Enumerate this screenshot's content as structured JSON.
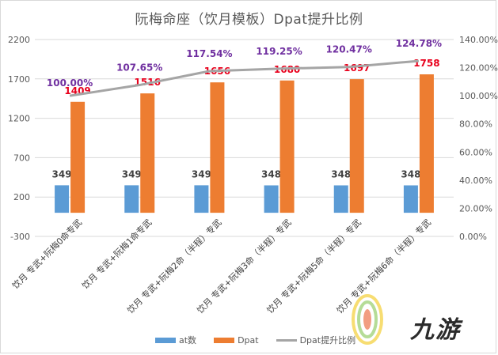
{
  "chart_data": {
    "type": "bar+line",
    "title": "阮梅命座（饮月模板）Dpat提升比例",
    "categories": [
      "饮月 专武+阮梅0命专武",
      "饮月 专武+阮梅1命专武",
      "饮月 专武+阮梅2命（半程）专武",
      "饮月 专武+阮梅3命（半程）专武",
      "饮月 专武+阮梅5命（半程）专武",
      "饮月 专武+阮梅6命（半程）专武"
    ],
    "series": [
      {
        "name": "at数",
        "type": "bar",
        "axis": "left",
        "color": "#5b9bd5",
        "values": [
          349,
          349,
          349,
          348,
          348,
          348
        ],
        "labels": [
          "349",
          "349",
          "349",
          "348",
          "348",
          "348"
        ]
      },
      {
        "name": "Dpat",
        "type": "bar",
        "axis": "left",
        "color": "#ed7d31",
        "values": [
          1409,
          1516,
          1656,
          1680,
          1697,
          1758
        ],
        "labels": [
          "1409",
          "1516",
          "1656",
          "1680",
          "1697",
          "1758"
        ]
      },
      {
        "name": "Dpat提升比例",
        "type": "line",
        "axis": "right",
        "color": "#a5a5a5",
        "values": [
          100.0,
          107.65,
          117.54,
          119.25,
          120.47,
          124.78
        ],
        "labels": [
          "100.00%",
          "107.65%",
          "117.54%",
          "119.25%",
          "120.47%",
          "124.78%"
        ]
      }
    ],
    "y_left": {
      "min": -300,
      "max": 2200,
      "ticks": [
        "2200",
        "1700",
        "1200",
        "700",
        "200",
        "-300"
      ],
      "tick_values": [
        2200,
        1700,
        1200,
        700,
        200,
        -300
      ]
    },
    "y_right": {
      "min": 0,
      "max": 140,
      "ticks": [
        "140.00%",
        "120.00%",
        "100.00%",
        "80.00%",
        "60.00%",
        "40.00%",
        "20.00%",
        "0.00%"
      ],
      "tick_values": [
        140,
        120,
        100,
        80,
        60,
        40,
        20,
        0
      ]
    },
    "grid": true,
    "legend": "bottom",
    "colors": {
      "dpat_label": "#e8001c",
      "pct_label": "#7030a0",
      "at_label": "#404040"
    }
  },
  "watermark": {
    "text": "九游",
    "icon": "jiuyou-logo-icon"
  }
}
